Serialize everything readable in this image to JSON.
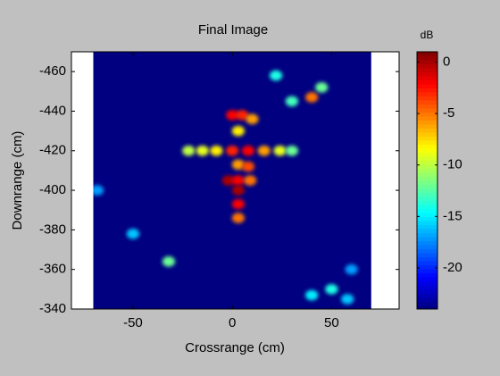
{
  "chart_data": {
    "type": "heatmap",
    "title": "Final Image",
    "x_label": "Crossrange (cm)",
    "y_label": "Downrange (cm)",
    "colorbar_label": "dB",
    "xlim": [
      -81,
      84
    ],
    "xticks": [
      -50,
      0,
      50
    ],
    "ylim": [
      -470,
      -340
    ],
    "yticks": [
      -460,
      -440,
      -420,
      -400,
      -380,
      -360,
      -340
    ],
    "y_reverse": true,
    "image_xlim": [
      -70,
      70
    ],
    "clim": [
      -24,
      1
    ],
    "cticks": [
      0,
      -5,
      -10,
      -15,
      -20
    ],
    "colormap": "jet",
    "x": [
      0,
      5,
      10,
      3,
      -22,
      -15,
      -8,
      0,
      8,
      16,
      24,
      30,
      3,
      8,
      -2,
      3,
      9,
      3,
      3,
      3,
      40,
      45,
      22,
      30,
      -32,
      -50,
      50,
      40,
      58,
      60,
      -68
    ],
    "y": [
      -438,
      -438,
      -436,
      -430,
      -420,
      -420,
      -420,
      -420,
      -420,
      -420,
      -420,
      -420,
      -413,
      -412,
      -405,
      -405,
      -405,
      -400,
      -393,
      -386,
      -447,
      -452,
      -458,
      -445,
      -364,
      -378,
      -350,
      -347,
      -345,
      -360,
      -400
    ],
    "values": [
      -2,
      -3,
      -6,
      -8,
      -10,
      -9,
      -8,
      -3,
      -2,
      -6,
      -9,
      -12,
      -6,
      -4,
      0,
      -2,
      -5,
      0,
      -2,
      -5,
      -5,
      -12,
      -14,
      -13,
      -12,
      -16,
      -14,
      -15,
      -16,
      -17,
      -17
    ]
  }
}
